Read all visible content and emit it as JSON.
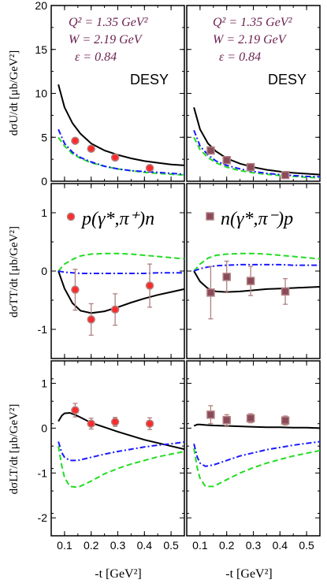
{
  "figure": {
    "xlabel_left": "-t [GeV²]",
    "xlabel_right": "-t [GeV²]",
    "ylabels": {
      "u": "dσU/dt [μb/GeV²]",
      "tt": "dσTT/dt [μb/GeV²]",
      "lt": "dσLT/dt [μb/GeV²]"
    },
    "kinematics": {
      "q2": "Q² = 1.35 GeV²",
      "w": "W = 2.19 GeV",
      "eps": "ε = 0.84"
    },
    "source_label": "DESY",
    "reactions": {
      "left": "p(γ*,π⁺)n",
      "right": "n(γ*,π⁻)p"
    },
    "colors": {
      "solid": "#000000",
      "dashed": "#22dd22",
      "dashdot": "#1a1aff",
      "proton_marker_fill": "#ff2a2a",
      "neutron_marker_fill": "#8b4a5a",
      "marker_edge": "#b08080",
      "kin_text": "#6a1f4f"
    }
  },
  "chart_data": [
    {
      "type": "line",
      "panel": "U",
      "column": "pi+",
      "xlim": [
        0.05,
        0.55
      ],
      "ylim": [
        0,
        20
      ],
      "yticks": [
        0,
        5,
        10,
        15,
        20
      ],
      "xticks": [
        0.1,
        0.2,
        0.3,
        0.4,
        0.5
      ],
      "series": [
        {
          "style": "solid",
          "x": [
            0.077,
            0.1,
            0.13,
            0.16,
            0.2,
            0.25,
            0.3,
            0.35,
            0.4,
            0.45,
            0.5,
            0.55
          ],
          "y": [
            11.0,
            8.4,
            6.6,
            5.4,
            4.3,
            3.5,
            3.0,
            2.6,
            2.3,
            2.1,
            1.9,
            1.8
          ]
        },
        {
          "style": "dashed",
          "x": [
            0.077,
            0.1,
            0.13,
            0.16,
            0.2,
            0.25,
            0.3,
            0.35,
            0.4,
            0.45,
            0.5,
            0.55
          ],
          "y": [
            5.0,
            4.0,
            3.1,
            2.6,
            2.1,
            1.7,
            1.4,
            1.2,
            1.0,
            0.9,
            0.8,
            0.7
          ]
        },
        {
          "style": "dashdot",
          "x": [
            0.077,
            0.1,
            0.13,
            0.16,
            0.2,
            0.25,
            0.3,
            0.35,
            0.4,
            0.45,
            0.5,
            0.55
          ],
          "y": [
            5.9,
            4.3,
            3.3,
            2.7,
            2.2,
            1.7,
            1.4,
            1.2,
            1.1,
            1.0,
            0.9,
            0.8
          ]
        }
      ],
      "points": [
        {
          "x": 0.14,
          "y": 4.6,
          "err": 0.3
        },
        {
          "x": 0.2,
          "y": 3.7,
          "err": 0.3
        },
        {
          "x": 0.29,
          "y": 2.7,
          "err": 0.2
        },
        {
          "x": 0.42,
          "y": 1.5,
          "err": 0.2
        }
      ]
    },
    {
      "type": "line",
      "panel": "U",
      "column": "pi-",
      "xlim": [
        0.05,
        0.55
      ],
      "ylim": [
        0,
        20
      ],
      "yticks": [
        0,
        5,
        10,
        15,
        20
      ],
      "xticks": [
        0.1,
        0.2,
        0.3,
        0.4,
        0.5
      ],
      "series": [
        {
          "style": "solid",
          "x": [
            0.077,
            0.1,
            0.13,
            0.16,
            0.2,
            0.25,
            0.3,
            0.35,
            0.4,
            0.45,
            0.5,
            0.55
          ],
          "y": [
            8.4,
            5.9,
            4.3,
            3.4,
            2.6,
            2.0,
            1.6,
            1.3,
            1.1,
            0.95,
            0.85,
            0.75
          ]
        },
        {
          "style": "dashed",
          "x": [
            0.077,
            0.1,
            0.13,
            0.16,
            0.2,
            0.25,
            0.3,
            0.35,
            0.4,
            0.45,
            0.5,
            0.55
          ],
          "y": [
            5.0,
            3.6,
            2.7,
            2.1,
            1.6,
            1.2,
            0.95,
            0.8,
            0.65,
            0.55,
            0.45,
            0.4
          ]
        },
        {
          "style": "dashdot",
          "x": [
            0.077,
            0.1,
            0.13,
            0.16,
            0.2,
            0.25,
            0.3,
            0.35,
            0.4,
            0.45,
            0.5,
            0.55
          ],
          "y": [
            5.8,
            4.0,
            3.0,
            2.3,
            1.8,
            1.4,
            1.1,
            0.9,
            0.75,
            0.65,
            0.55,
            0.5
          ]
        }
      ],
      "points": [
        {
          "x": 0.14,
          "y": 3.5,
          "err": 0.3
        },
        {
          "x": 0.2,
          "y": 2.4,
          "err": 0.2
        },
        {
          "x": 0.29,
          "y": 1.6,
          "err": 0.2
        },
        {
          "x": 0.42,
          "y": 0.7,
          "err": 0.2
        }
      ]
    },
    {
      "type": "line",
      "panel": "TT",
      "column": "pi+",
      "xlim": [
        0.05,
        0.55
      ],
      "ylim": [
        -1.5,
        1.5
      ],
      "yticks": [
        -1,
        0,
        1
      ],
      "xticks": [
        0.1,
        0.2,
        0.3,
        0.4,
        0.5
      ],
      "series": [
        {
          "style": "solid",
          "x": [
            0.077,
            0.1,
            0.13,
            0.16,
            0.2,
            0.25,
            0.3,
            0.35,
            0.4,
            0.45,
            0.5,
            0.55
          ],
          "y": [
            0,
            -0.3,
            -0.55,
            -0.68,
            -0.72,
            -0.69,
            -0.62,
            -0.54,
            -0.47,
            -0.41,
            -0.36,
            -0.31
          ]
        },
        {
          "style": "dashed",
          "x": [
            0.077,
            0.1,
            0.13,
            0.16,
            0.2,
            0.25,
            0.3,
            0.35,
            0.4,
            0.45,
            0.5,
            0.55
          ],
          "y": [
            0,
            0.12,
            0.2,
            0.26,
            0.29,
            0.3,
            0.3,
            0.29,
            0.27,
            0.25,
            0.23,
            0.21
          ]
        },
        {
          "style": "dashdot",
          "x": [
            0.077,
            0.1,
            0.13,
            0.16,
            0.2,
            0.25,
            0.3,
            0.35,
            0.4,
            0.45,
            0.5,
            0.55
          ],
          "y": [
            0,
            -0.02,
            -0.03,
            -0.04,
            -0.04,
            -0.04,
            -0.04,
            -0.04,
            -0.04,
            -0.03,
            -0.03,
            -0.03
          ]
        }
      ],
      "points": [
        {
          "x": 0.14,
          "y": -0.32,
          "err": 0.35
        },
        {
          "x": 0.2,
          "y": -0.83,
          "err": 0.27
        },
        {
          "x": 0.29,
          "y": -0.66,
          "err": 0.27
        },
        {
          "x": 0.42,
          "y": -0.25,
          "err": 0.37
        }
      ]
    },
    {
      "type": "line",
      "panel": "TT",
      "column": "pi-",
      "xlim": [
        0.05,
        0.55
      ],
      "ylim": [
        -1.5,
        1.5
      ],
      "yticks": [
        -1,
        0,
        1
      ],
      "xticks": [
        0.1,
        0.2,
        0.3,
        0.4,
        0.5
      ],
      "series": [
        {
          "style": "solid",
          "x": [
            0.077,
            0.1,
            0.13,
            0.16,
            0.2,
            0.25,
            0.3,
            0.35,
            0.4,
            0.45,
            0.5,
            0.55
          ],
          "y": [
            0,
            -0.18,
            -0.3,
            -0.35,
            -0.36,
            -0.35,
            -0.33,
            -0.31,
            -0.3,
            -0.29,
            -0.28,
            -0.27
          ]
        },
        {
          "style": "dashed",
          "x": [
            0.077,
            0.1,
            0.13,
            0.16,
            0.2,
            0.25,
            0.3,
            0.35,
            0.4,
            0.45,
            0.5,
            0.55
          ],
          "y": [
            0,
            0.12,
            0.22,
            0.27,
            0.29,
            0.3,
            0.3,
            0.29,
            0.27,
            0.25,
            0.23,
            0.21
          ]
        },
        {
          "style": "dashdot",
          "x": [
            0.077,
            0.1,
            0.13,
            0.16,
            0.2,
            0.25,
            0.3,
            0.35,
            0.4,
            0.45,
            0.5,
            0.55
          ],
          "y": [
            0,
            0.04,
            0.07,
            0.09,
            0.1,
            0.11,
            0.11,
            0.11,
            0.11,
            0.1,
            0.1,
            0.1
          ]
        }
      ],
      "points": [
        {
          "x": 0.14,
          "y": -0.37,
          "err": 0.45
        },
        {
          "x": 0.2,
          "y": -0.1,
          "err": 0.27
        },
        {
          "x": 0.29,
          "y": -0.17,
          "err": 0.25
        },
        {
          "x": 0.42,
          "y": -0.35,
          "err": 0.22
        }
      ]
    },
    {
      "type": "line",
      "panel": "LT",
      "column": "pi+",
      "xlim": [
        0.05,
        0.55
      ],
      "ylim": [
        -2.4,
        1.5
      ],
      "yticks": [
        -2,
        -1,
        0,
        1
      ],
      "xticks": [
        0.1,
        0.2,
        0.3,
        0.4,
        0.5
      ],
      "series": [
        {
          "style": "solid",
          "x": [
            0.077,
            0.09,
            0.1,
            0.12,
            0.15,
            0.2,
            0.25,
            0.3,
            0.35,
            0.4,
            0.45,
            0.5,
            0.55
          ],
          "y": [
            0.15,
            0.28,
            0.33,
            0.34,
            0.27,
            0.12,
            0.02,
            -0.08,
            -0.17,
            -0.26,
            -0.33,
            -0.4,
            -0.47
          ]
        },
        {
          "style": "dashed",
          "x": [
            0.077,
            0.09,
            0.1,
            0.12,
            0.15,
            0.2,
            0.25,
            0.3,
            0.35,
            0.4,
            0.45,
            0.5,
            0.55
          ],
          "y": [
            -0.4,
            -0.85,
            -1.1,
            -1.3,
            -1.32,
            -1.18,
            -1.02,
            -0.9,
            -0.8,
            -0.72,
            -0.64,
            -0.58,
            -0.52
          ]
        },
        {
          "style": "dashdot",
          "x": [
            0.077,
            0.09,
            0.1,
            0.12,
            0.15,
            0.2,
            0.25,
            0.3,
            0.35,
            0.4,
            0.45,
            0.5,
            0.55
          ],
          "y": [
            -0.3,
            -0.55,
            -0.65,
            -0.72,
            -0.72,
            -0.65,
            -0.58,
            -0.52,
            -0.47,
            -0.42,
            -0.38,
            -0.35,
            -0.31
          ]
        }
      ],
      "points": [
        {
          "x": 0.14,
          "y": 0.4,
          "err": 0.15
        },
        {
          "x": 0.2,
          "y": 0.1,
          "err": 0.12
        },
        {
          "x": 0.29,
          "y": 0.14,
          "err": 0.1
        },
        {
          "x": 0.42,
          "y": 0.1,
          "err": 0.13
        }
      ]
    },
    {
      "type": "line",
      "panel": "LT",
      "column": "pi-",
      "xlim": [
        0.05,
        0.55
      ],
      "ylim": [
        -2.4,
        1.5
      ],
      "yticks": [
        -2,
        -1,
        0,
        1
      ],
      "xticks": [
        0.1,
        0.2,
        0.3,
        0.4,
        0.5
      ],
      "series": [
        {
          "style": "solid",
          "x": [
            0.077,
            0.09,
            0.1,
            0.12,
            0.15,
            0.2,
            0.25,
            0.3,
            0.35,
            0.4,
            0.45,
            0.5,
            0.55
          ],
          "y": [
            0.05,
            0.08,
            0.08,
            0.07,
            0.06,
            0.05,
            0.04,
            0.03,
            0.02,
            0.02,
            0.01,
            0.01,
            0.0
          ]
        },
        {
          "style": "dashed",
          "x": [
            0.077,
            0.09,
            0.1,
            0.12,
            0.15,
            0.2,
            0.25,
            0.3,
            0.35,
            0.4,
            0.45,
            0.5,
            0.55
          ],
          "y": [
            -0.45,
            -0.9,
            -1.12,
            -1.3,
            -1.3,
            -1.15,
            -1.0,
            -0.88,
            -0.78,
            -0.7,
            -0.62,
            -0.56,
            -0.5
          ]
        },
        {
          "style": "dashdot",
          "x": [
            0.077,
            0.09,
            0.1,
            0.12,
            0.15,
            0.2,
            0.25,
            0.3,
            0.35,
            0.4,
            0.45,
            0.5,
            0.55
          ],
          "y": [
            -0.35,
            -0.65,
            -0.78,
            -0.85,
            -0.82,
            -0.72,
            -0.62,
            -0.55,
            -0.48,
            -0.43,
            -0.38,
            -0.34,
            -0.3
          ]
        }
      ],
      "points": [
        {
          "x": 0.14,
          "y": 0.3,
          "err": 0.2
        },
        {
          "x": 0.2,
          "y": 0.18,
          "err": 0.12
        },
        {
          "x": 0.29,
          "y": 0.22,
          "err": 0.1
        },
        {
          "x": 0.42,
          "y": 0.17,
          "err": 0.1
        }
      ]
    }
  ]
}
